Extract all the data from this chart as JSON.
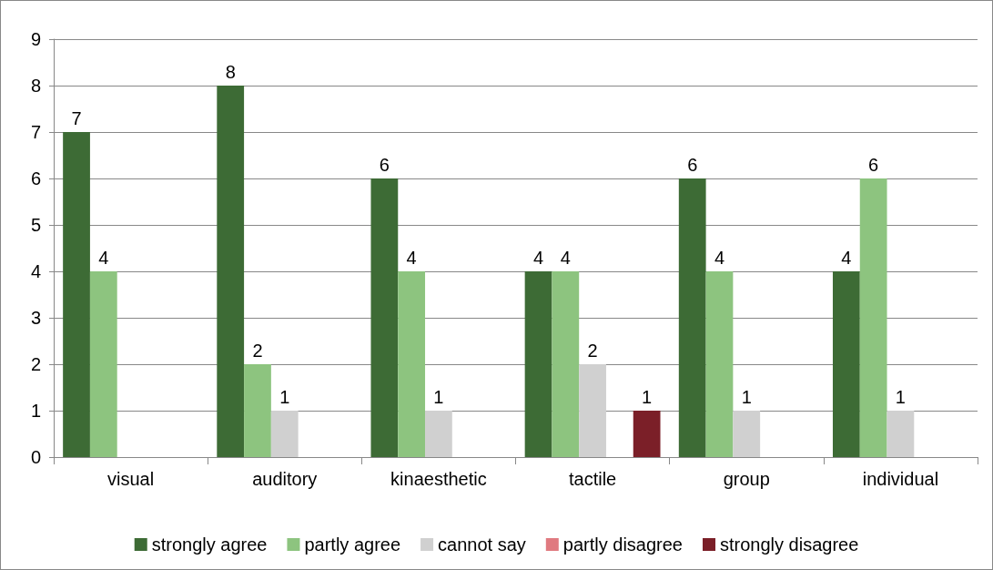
{
  "chart_data": {
    "type": "bar",
    "categories": [
      "visual",
      "auditory",
      "kinaesthetic",
      "tactile",
      "group",
      "individual"
    ],
    "series": [
      {
        "name": "strongly agree",
        "color": "#3d6b35",
        "values": [
          7,
          8,
          6,
          4,
          6,
          4
        ],
        "value_labels": [
          "7",
          "8",
          "6",
          "4",
          "6",
          "4"
        ]
      },
      {
        "name": "partly agree",
        "color": "#8dc47f",
        "values": [
          4,
          2,
          4,
          4,
          4,
          6
        ],
        "value_labels": [
          "4",
          "2",
          "4",
          "4",
          "4",
          "6"
        ]
      },
      {
        "name": "cannot say",
        "color": "#d0d0d0",
        "values": [
          0,
          1,
          1,
          2,
          1,
          1
        ],
        "value_labels": [
          null,
          "1",
          "1",
          "2",
          "1",
          "1"
        ]
      },
      {
        "name": "partly disagree",
        "color": "#e07a80",
        "values": [
          0,
          0,
          0,
          0,
          0,
          0
        ],
        "value_labels": [
          null,
          null,
          null,
          null,
          null,
          null
        ]
      },
      {
        "name": "strongly disagree",
        "color": "#7b1f28",
        "values": [
          0,
          0,
          0,
          1,
          0,
          0
        ],
        "value_labels": [
          null,
          null,
          null,
          "1",
          null,
          null
        ]
      }
    ],
    "ylim": [
      0,
      9
    ],
    "yticks": [
      0,
      1,
      2,
      3,
      4,
      5,
      6,
      7,
      8,
      9
    ],
    "grid": "y",
    "legend": "bottom"
  }
}
